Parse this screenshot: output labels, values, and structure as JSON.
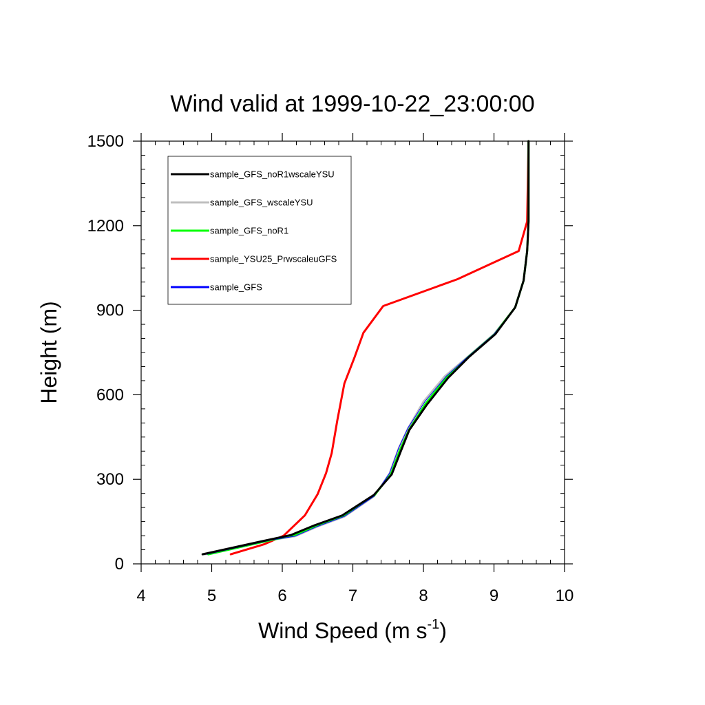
{
  "chart_data": {
    "type": "line",
    "title": "Wind valid at 1999-10-22_23:00:00",
    "xlabel_main": "Wind Speed (m s",
    "xlabel_sup": "-1",
    "xlabel_close": ")",
    "ylabel": "Height (m)",
    "xlim": [
      4,
      10
    ],
    "ylim": [
      0,
      1500
    ],
    "x_ticks": [
      4,
      5,
      6,
      7,
      8,
      9,
      10
    ],
    "y_ticks": [
      0,
      300,
      600,
      900,
      1200,
      1500
    ],
    "legend_position": "top-left",
    "grid": false,
    "series": [
      {
        "name": "sample_GFS_noR1wscaleYSU",
        "color": "#000000",
        "width": 3,
        "points": [
          [
            4.87,
            34
          ],
          [
            5.8,
            85
          ],
          [
            6.12,
            102
          ],
          [
            6.45,
            136
          ],
          [
            6.85,
            172
          ],
          [
            7.3,
            245
          ],
          [
            7.55,
            317
          ],
          [
            7.68,
            400
          ],
          [
            7.8,
            475
          ],
          [
            8.05,
            565
          ],
          [
            8.35,
            660
          ],
          [
            8.65,
            735
          ],
          [
            9.02,
            815
          ],
          [
            9.3,
            910
          ],
          [
            9.42,
            1005
          ],
          [
            9.47,
            1110
          ],
          [
            9.49,
            1215
          ],
          [
            9.49,
            1320
          ],
          [
            9.49,
            1500
          ]
        ]
      },
      {
        "name": "sample_GFS_wscaleYSU",
        "color": "#bfbfbf",
        "width": 3,
        "points": [
          [
            4.9,
            34
          ],
          [
            5.85,
            85
          ],
          [
            6.18,
            98
          ],
          [
            6.5,
            133
          ],
          [
            6.88,
            168
          ],
          [
            7.3,
            240
          ],
          [
            7.52,
            320
          ],
          [
            7.65,
            410
          ],
          [
            7.78,
            480
          ],
          [
            8.0,
            575
          ],
          [
            8.3,
            665
          ],
          [
            8.63,
            735
          ],
          [
            9.0,
            815
          ],
          [
            9.3,
            910
          ],
          [
            9.42,
            1005
          ],
          [
            9.47,
            1110
          ],
          [
            9.49,
            1215
          ],
          [
            9.49,
            1500
          ]
        ]
      },
      {
        "name": "sample_GFS_noR1",
        "color": "#00ff00",
        "width": 3,
        "points": [
          [
            4.95,
            34
          ],
          [
            5.85,
            85
          ],
          [
            6.15,
            100
          ],
          [
            6.48,
            135
          ],
          [
            6.86,
            170
          ],
          [
            7.3,
            242
          ],
          [
            7.54,
            318
          ],
          [
            7.67,
            405
          ],
          [
            7.8,
            477
          ],
          [
            8.03,
            568
          ],
          [
            8.33,
            662
          ],
          [
            8.64,
            735
          ],
          [
            9.01,
            815
          ],
          [
            9.3,
            910
          ],
          [
            9.42,
            1005
          ],
          [
            9.47,
            1110
          ],
          [
            9.49,
            1215
          ],
          [
            9.49,
            1500
          ]
        ]
      },
      {
        "name": "sample_YSU25_PrwscaleuGFS",
        "color": "#ff0000",
        "width": 3,
        "points": [
          [
            5.27,
            34
          ],
          [
            5.75,
            70
          ],
          [
            6.02,
            100
          ],
          [
            6.32,
            172
          ],
          [
            6.5,
            247
          ],
          [
            6.62,
            322
          ],
          [
            6.7,
            393
          ],
          [
            6.78,
            510
          ],
          [
            6.88,
            640
          ],
          [
            7.02,
            730
          ],
          [
            7.15,
            820
          ],
          [
            7.43,
            915
          ],
          [
            8.48,
            1010
          ],
          [
            9.35,
            1110
          ],
          [
            9.47,
            1215
          ],
          [
            9.49,
            1500
          ]
        ]
      },
      {
        "name": "sample_GFS",
        "color": "#0000ff",
        "width": 1,
        "points": [
          [
            4.93,
            34
          ],
          [
            5.85,
            85
          ],
          [
            6.18,
            98
          ],
          [
            6.5,
            133
          ],
          [
            6.88,
            168
          ],
          [
            7.3,
            240
          ],
          [
            7.52,
            322
          ],
          [
            7.65,
            412
          ],
          [
            7.78,
            482
          ],
          [
            8.02,
            575
          ],
          [
            8.32,
            665
          ],
          [
            8.63,
            735
          ],
          [
            9.0,
            815
          ],
          [
            9.3,
            910
          ],
          [
            9.42,
            1005
          ],
          [
            9.47,
            1110
          ],
          [
            9.49,
            1215
          ],
          [
            9.49,
            1500
          ]
        ]
      }
    ]
  }
}
